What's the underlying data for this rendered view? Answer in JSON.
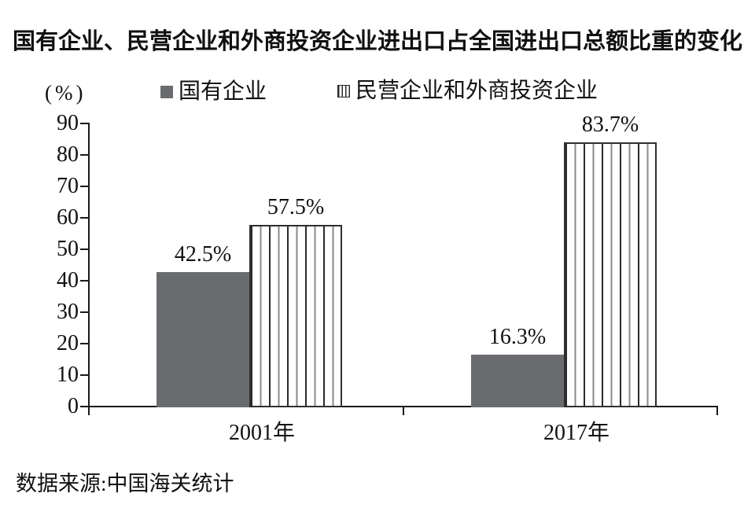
{
  "title": "国有企业、民营企业和外商投资企业进出口占全国进出口总额比重的变化",
  "source_note": "数据来源:中国海关统计",
  "colors": {
    "solid_bar": "#6a6b6e",
    "stripe": "#2a2a2a",
    "stripe_light": "#8a8a8a",
    "axis": "#1a1a1a",
    "text": "#111111",
    "background": "#ffffff"
  },
  "legend": {
    "items": [
      {
        "label": "国有企业",
        "swatch": "solid-gray-square"
      },
      {
        "label": "民营企业和外商投资企业",
        "swatch": "striped-square"
      }
    ]
  },
  "chart_data": {
    "type": "bar",
    "title": "国有企业、民营企业和外商投资企业进出口占全国进出口总额比重的变化",
    "xlabel": "",
    "ylabel": "(%)",
    "ylim": [
      0,
      90
    ],
    "ytick_step": 10,
    "grid": false,
    "legend_position": "top",
    "categories": [
      "2001年",
      "2017年"
    ],
    "series": [
      {
        "name": "国有企业",
        "style": "solid",
        "values": [
          42.5,
          16.3
        ],
        "value_labels": [
          "42.5%",
          "16.3%"
        ]
      },
      {
        "name": "民营企业和外商投资企业",
        "style": "striped",
        "values": [
          57.5,
          83.7
        ],
        "value_labels": [
          "57.5%",
          "83.7%"
        ]
      }
    ],
    "source": "数据来源:中国海关统计"
  }
}
